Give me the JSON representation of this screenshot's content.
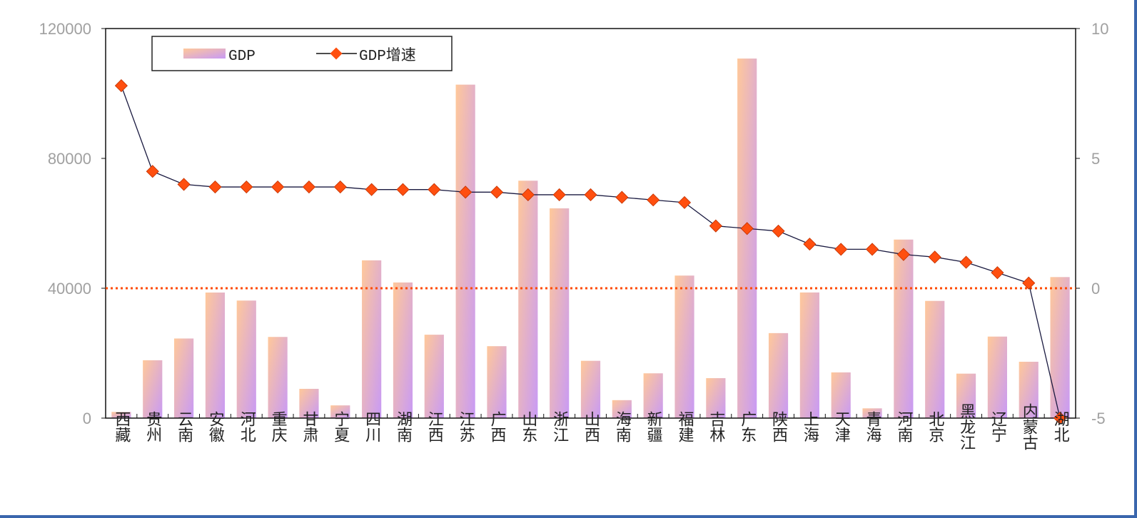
{
  "chart_data": {
    "type": "bar+line",
    "categories": [
      "西藏",
      "贵州",
      "云南",
      "安徽",
      "河北",
      "重庆",
      "甘肃",
      "宁夏",
      "四川",
      "湖南",
      "江西",
      "江苏",
      "广西",
      "山东",
      "浙江",
      "山西",
      "海南",
      "新疆",
      "福建",
      "吉林",
      "广东",
      "陕西",
      "上海",
      "天津",
      "青海",
      "河南",
      "北京",
      "黑龙江",
      "辽宁",
      "内蒙古",
      "湖北"
    ],
    "series": [
      {
        "name": "GDP",
        "type": "bar",
        "axis": "left",
        "values": [
          1903,
          17827,
          24522,
          38681,
          36207,
          25003,
          9017,
          3921,
          48599,
          41781,
          25692,
          102719,
          22157,
          73129,
          64613,
          17652,
          5532,
          13798,
          43904,
          12311,
          110760,
          26182,
          38701,
          14084,
          3006,
          54997,
          36103,
          13699,
          25115,
          17360,
          43443
        ]
      },
      {
        "name": "GDP增速",
        "type": "line",
        "axis": "right",
        "values": [
          7.8,
          4.5,
          4.0,
          3.9,
          3.9,
          3.9,
          3.9,
          3.9,
          3.8,
          3.8,
          3.8,
          3.7,
          3.7,
          3.6,
          3.6,
          3.6,
          3.5,
          3.4,
          3.3,
          2.4,
          2.3,
          2.2,
          1.7,
          1.5,
          1.5,
          1.3,
          1.2,
          1.0,
          0.6,
          0.2,
          -5.0
        ]
      }
    ],
    "left_axis": {
      "ylim": [
        0,
        120000
      ],
      "ticks": [
        "0",
        "40000",
        "80000",
        "120000"
      ],
      "tick_values": [
        0,
        40000,
        80000,
        120000
      ]
    },
    "right_axis": {
      "ylim": [
        -5,
        10
      ],
      "ticks": [
        "-5",
        "0",
        "5",
        "10"
      ],
      "tick_values": [
        -5,
        0,
        5,
        10
      ]
    },
    "reference_line": {
      "axis": "right",
      "value": 0,
      "style": "dotted",
      "color": "#ff4a00"
    },
    "legend": {
      "placement": "top-left",
      "entries": [
        "GDP",
        "GDP增速"
      ]
    },
    "grid": false,
    "colors": {
      "bar_top": "#ffc89a",
      "bar_bottom": "#c89af5",
      "line": "#1a1a40",
      "marker": "#ff4f0f",
      "frame": "#3a66ad"
    }
  }
}
